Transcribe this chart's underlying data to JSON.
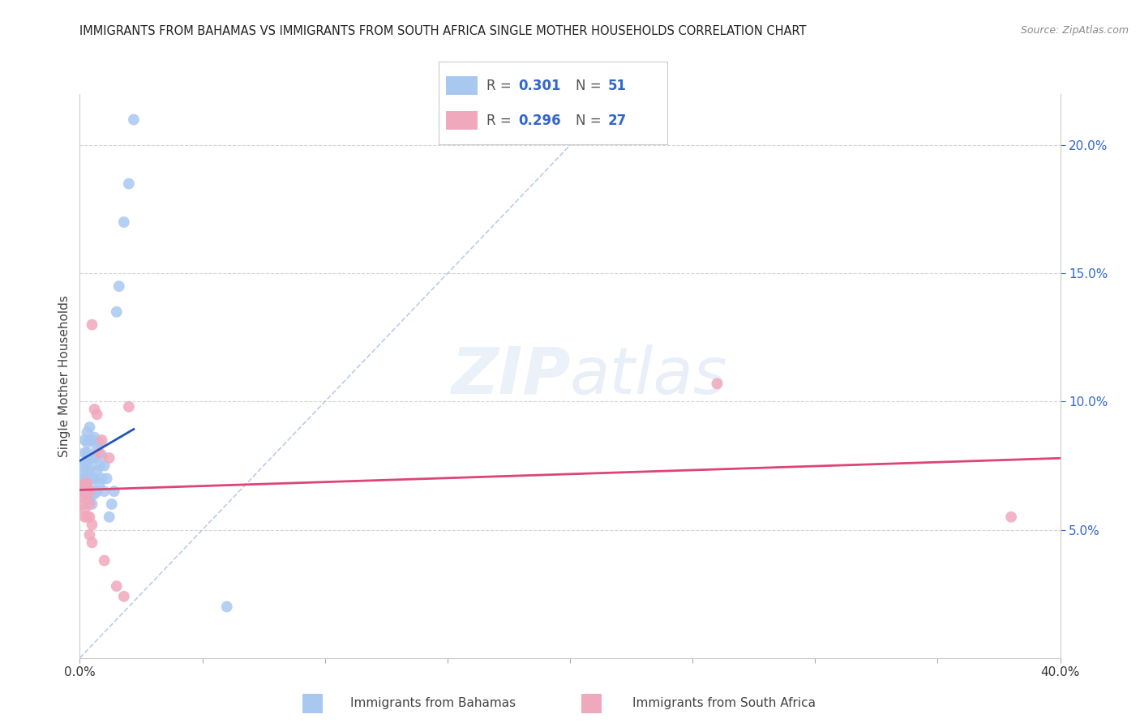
{
  "title": "IMMIGRANTS FROM BAHAMAS VS IMMIGRANTS FROM SOUTH AFRICA SINGLE MOTHER HOUSEHOLDS CORRELATION CHART",
  "source": "Source: ZipAtlas.com",
  "ylabel": "Single Mother Households",
  "right_yticks": [
    0.05,
    0.1,
    0.15,
    0.2
  ],
  "right_yticklabels": [
    "5.0%",
    "10.0%",
    "15.0%",
    "20.0%"
  ],
  "xlim": [
    0.0,
    0.4
  ],
  "ylim": [
    0.0,
    0.22
  ],
  "legend_r_bahamas": "0.301",
  "legend_n_bahamas": "51",
  "legend_r_safrica": "0.296",
  "legend_n_safrica": "27",
  "bahamas_color": "#a8c8f0",
  "safrica_color": "#f0a8bc",
  "bahamas_line_color": "#2255bb",
  "safrica_line_color": "#dd4477",
  "diagonal_color": "#b0c8e8",
  "watermark_zip": "ZIP",
  "watermark_atlas": "atlas",
  "bahamas_x": [
    0.001,
    0.001,
    0.001,
    0.002,
    0.002,
    0.002,
    0.002,
    0.002,
    0.003,
    0.003,
    0.003,
    0.003,
    0.003,
    0.003,
    0.003,
    0.003,
    0.004,
    0.004,
    0.004,
    0.004,
    0.004,
    0.004,
    0.005,
    0.005,
    0.005,
    0.005,
    0.005,
    0.006,
    0.006,
    0.006,
    0.006,
    0.007,
    0.007,
    0.007,
    0.008,
    0.008,
    0.008,
    0.009,
    0.009,
    0.01,
    0.01,
    0.011,
    0.012,
    0.013,
    0.014,
    0.015,
    0.016,
    0.018,
    0.02,
    0.022,
    0.06
  ],
  "bahamas_y": [
    0.065,
    0.07,
    0.075,
    0.068,
    0.072,
    0.076,
    0.08,
    0.085,
    0.063,
    0.066,
    0.07,
    0.073,
    0.076,
    0.08,
    0.084,
    0.088,
    0.062,
    0.066,
    0.07,
    0.074,
    0.085,
    0.09,
    0.06,
    0.064,
    0.07,
    0.078,
    0.085,
    0.064,
    0.07,
    0.078,
    0.086,
    0.065,
    0.073,
    0.082,
    0.068,
    0.075,
    0.084,
    0.07,
    0.079,
    0.065,
    0.075,
    0.07,
    0.055,
    0.06,
    0.065,
    0.135,
    0.145,
    0.17,
    0.185,
    0.21,
    0.02
  ],
  "safrica_x": [
    0.001,
    0.001,
    0.002,
    0.002,
    0.002,
    0.002,
    0.003,
    0.003,
    0.003,
    0.004,
    0.004,
    0.004,
    0.004,
    0.005,
    0.005,
    0.005,
    0.006,
    0.007,
    0.008,
    0.009,
    0.01,
    0.012,
    0.015,
    0.018,
    0.02,
    0.26,
    0.38
  ],
  "safrica_y": [
    0.06,
    0.065,
    0.055,
    0.058,
    0.062,
    0.068,
    0.055,
    0.063,
    0.068,
    0.048,
    0.055,
    0.06,
    0.065,
    0.045,
    0.052,
    0.13,
    0.097,
    0.095,
    0.08,
    0.085,
    0.038,
    0.078,
    0.028,
    0.024,
    0.098,
    0.107,
    0.055
  ]
}
